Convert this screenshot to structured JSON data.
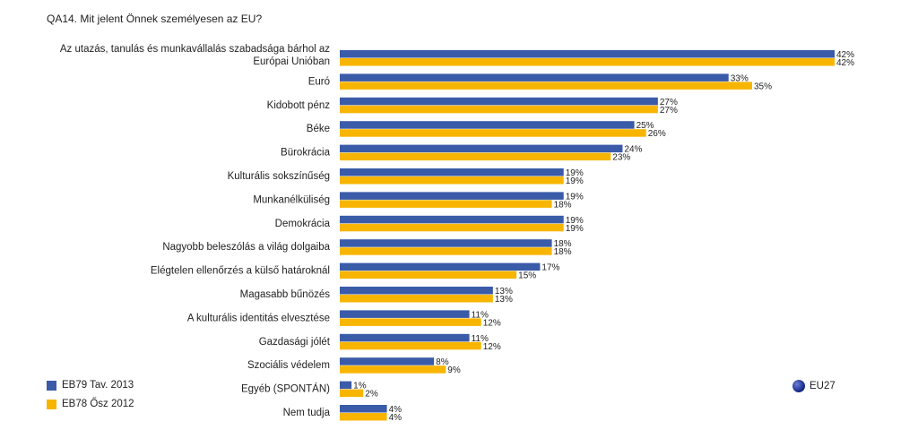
{
  "title": "QA14. Mit jelent Önnek személyesen az EU?",
  "legend": {
    "series1": "EB79 Tav. 2013",
    "series2": "EB78 Ősz 2012",
    "region": "EU27"
  },
  "colors": {
    "series1": "#3a5ba8",
    "series2": "#f7b500"
  },
  "chart_data": {
    "type": "bar",
    "orientation": "horizontal",
    "unit": "%",
    "categories": [
      [
        "Az utazás, tanulás és munkavállalás szabadsága bárhol az",
        "Európai Unióban"
      ],
      [
        "Euró"
      ],
      [
        "Kidobott pénz"
      ],
      [
        "Béke"
      ],
      [
        "Bürokrácia"
      ],
      [
        "Kulturális sokszínűség"
      ],
      [
        "Munkanélküliség"
      ],
      [
        "Demokrácia"
      ],
      [
        "Nagyobb beleszólás a világ dolgaiba"
      ],
      [
        "Elégtelen ellenőrzés a külső határoknál"
      ],
      [
        "Magasabb bűnözés"
      ],
      [
        "A kulturális identitás elvesztése"
      ],
      [
        "Gazdasági jólét"
      ],
      [
        "Szociális védelem"
      ],
      [
        "Egyéb (SPONTÁN)"
      ],
      [
        "Nem tudja"
      ]
    ],
    "series": [
      {
        "name": "EB79 Tav. 2013",
        "values": [
          42,
          33,
          27,
          25,
          24,
          19,
          19,
          19,
          18,
          17,
          13,
          11,
          11,
          8,
          1,
          4
        ]
      },
      {
        "name": "EB78 Ősz 2012",
        "values": [
          42,
          35,
          27,
          26,
          23,
          19,
          18,
          19,
          18,
          15,
          13,
          12,
          12,
          9,
          2,
          4
        ]
      }
    ],
    "xlim": [
      0,
      42
    ],
    "grid": false
  }
}
